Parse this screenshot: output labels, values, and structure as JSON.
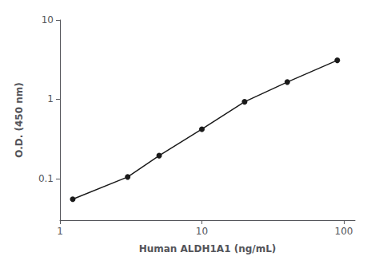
{
  "chart_data": {
    "type": "line",
    "x": [
      1.23,
      3.0,
      5.0,
      10.0,
      20.0,
      40.0,
      90.0
    ],
    "values": [
      0.055,
      0.105,
      0.195,
      0.42,
      0.93,
      1.65,
      3.1
    ],
    "x_label": "Human ALDH1A1 (ng/mL)",
    "y_label": "O.D. (450 nm)",
    "log": true,
    "xlim": [
      1.0,
      120.0
    ],
    "ylim": [
      0.03,
      10.0
    ],
    "xticks": [
      1,
      10,
      100
    ],
    "yticks": [
      0.1,
      1,
      10
    ],
    "color": "#1a1a1a",
    "marker": "circle",
    "grid": false
  }
}
